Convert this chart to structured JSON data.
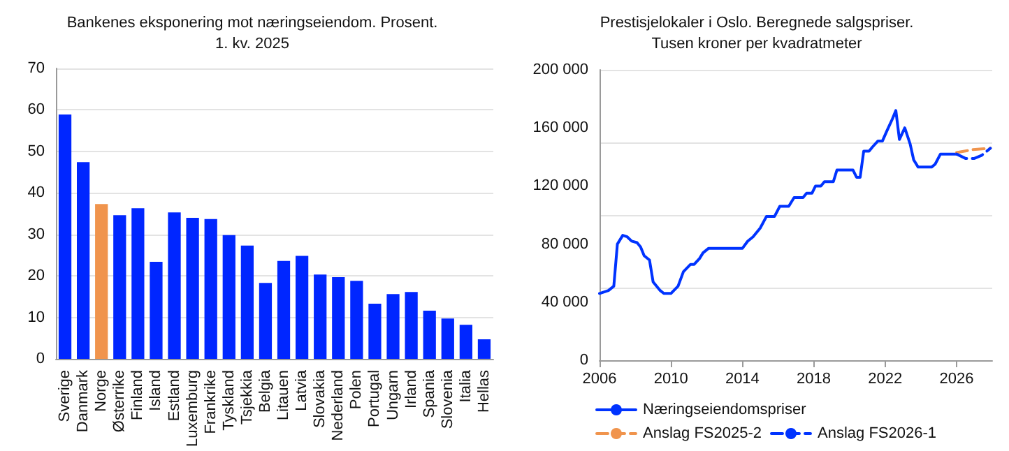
{
  "chart_data": [
    {
      "type": "bar",
      "title": "Bankenes eksponering mot næringseiendom. Prosent.\n1. kv. 2025",
      "categories": [
        "Sverige",
        "Danmark",
        "Norge",
        "Østerrike",
        "Finland",
        "Island",
        "Estland",
        "Luxemburg",
        "Frankrike",
        "Tyskland",
        "Tsjekkia",
        "Belgia",
        "Litauen",
        "Latvia",
        "Slovakia",
        "Nederland",
        "Polen",
        "Portugal",
        "Ungarn",
        "Irland",
        "Spania",
        "Slovenia",
        "Italia",
        "Hellas"
      ],
      "values": [
        58.9,
        47.4,
        37.3,
        34.6,
        36.3,
        23.4,
        35.3,
        34,
        33.7,
        29.8,
        27.3,
        18.3,
        23.6,
        24.8,
        20.3,
        19.7,
        18.8,
        13.3,
        15.6,
        16.1,
        11.6,
        9.7,
        8.2,
        4.7
      ],
      "colors": [
        "#0026ff",
        "#0026ff",
        "#f0944d",
        "#0026ff",
        "#0026ff",
        "#0026ff",
        "#0026ff",
        "#0026ff",
        "#0026ff",
        "#0026ff",
        "#0026ff",
        "#0026ff",
        "#0026ff",
        "#0026ff",
        "#0026ff",
        "#0026ff",
        "#0026ff",
        "#0026ff",
        "#0026ff",
        "#0026ff",
        "#0026ff",
        "#0026ff",
        "#0026ff",
        "#0026ff"
      ],
      "ylim": [
        0,
        70
      ],
      "yticks": [
        0,
        10,
        20,
        30,
        40,
        50,
        60,
        70
      ],
      "grid": "y"
    },
    {
      "type": "line",
      "title": "Prestisjelokaler i Oslo. Beregnede salgspriser.\nTusen kroner per kvadratmeter",
      "xlim": [
        2006,
        2028
      ],
      "xticks": [
        2006,
        2010,
        2014,
        2018,
        2022,
        2026
      ],
      "ylim": [
        0,
        200000
      ],
      "yticks": [
        {
          "value": 0,
          "label": "0"
        },
        {
          "value": 40000,
          "label": "40 000"
        },
        {
          "value": 80000,
          "label": "80 000"
        },
        {
          "value": 120000,
          "label": "120 000"
        },
        {
          "value": 160000,
          "label": "160 000"
        },
        {
          "value": 200000,
          "label": "200 000"
        }
      ],
      "grid": "y",
      "legend": "bottom",
      "marker": "none",
      "series": [
        {
          "name": "Næringseiendomspriser",
          "color": "#0033ff",
          "line_style": "solid",
          "x": [
            2006,
            2006.5,
            2006.8,
            2007,
            2007.3,
            2007.55,
            2007.8,
            2008.1,
            2008.3,
            2008.5,
            2008.8,
            2009,
            2009.4,
            2009.6,
            2010,
            2010.4,
            2010.7,
            2011.1,
            2011.3,
            2011.6,
            2011.8,
            2012.1,
            2014,
            2014.3,
            2014.6,
            2015,
            2015.35,
            2015.8,
            2016.1,
            2016.6,
            2016.9,
            2017.4,
            2017.6,
            2017.9,
            2018.1,
            2018.4,
            2018.6,
            2019.1,
            2019.3,
            2020.2,
            2020.4,
            2020.6,
            2020.8,
            2021.1,
            2021.3,
            2021.6,
            2021.85,
            2022.1,
            2022.4,
            2022.6,
            2022.8,
            2023.1,
            2023.4,
            2023.6,
            2023.85,
            2024.6,
            2024.8,
            2025.1,
            2026
          ],
          "values": [
            46000,
            48000,
            51000,
            80000,
            86000,
            85000,
            82000,
            81000,
            78000,
            72000,
            69000,
            54000,
            48000,
            46000,
            46000,
            51000,
            61000,
            66000,
            66000,
            70000,
            74000,
            77000,
            77000,
            82000,
            85000,
            91000,
            99000,
            99000,
            106000,
            106000,
            112000,
            112000,
            115000,
            115000,
            120000,
            120000,
            123000,
            123000,
            131000,
            131000,
            126000,
            126000,
            144000,
            144000,
            147000,
            151000,
            151000,
            158000,
            166000,
            172000,
            152000,
            160000,
            149000,
            138000,
            133000,
            133000,
            135000,
            142000,
            142000
          ]
        },
        {
          "name": "Anslag FS2025-2",
          "color": "#f0944d",
          "line_style": "dashed",
          "x": [
            2026,
            2026.9,
            2027.9
          ],
          "values": [
            143000,
            145000,
            146000
          ]
        },
        {
          "name": "Anslag FS2026-1",
          "color": "#0033ff",
          "line_style": "dashed",
          "x": [
            2026,
            2026.5,
            2027,
            2027.4,
            2027.9
          ],
          "values": [
            142000,
            139000,
            139000,
            141000,
            146000
          ]
        }
      ]
    }
  ]
}
